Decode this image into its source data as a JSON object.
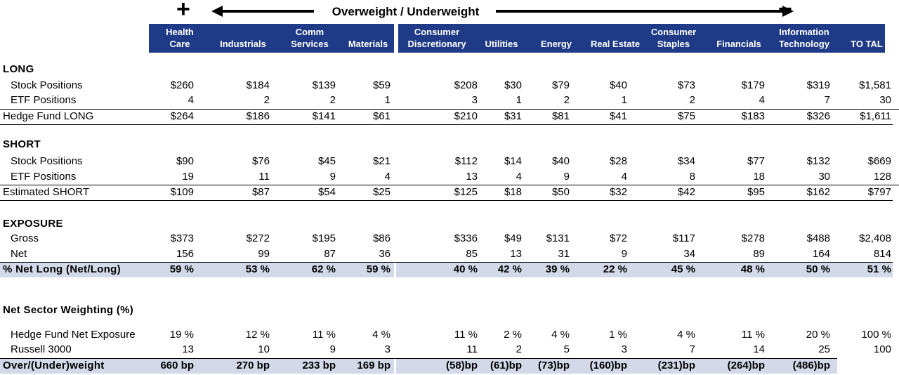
{
  "header": {
    "plus": "+",
    "minus": "−",
    "title": "Overweight / Underweight"
  },
  "columns": [
    {
      "line1": "Health",
      "line2": "Care"
    },
    {
      "line1": "",
      "line2": "Industrials"
    },
    {
      "line1": "Comm",
      "line2": "Services"
    },
    {
      "line1": "",
      "line2": "Materials"
    },
    {
      "line1": "Consumer",
      "line2": "Discretionary"
    },
    {
      "line1": "",
      "line2": "Utilities"
    },
    {
      "line1": "",
      "line2": "Energy"
    },
    {
      "line1": "",
      "line2": "Real Estate"
    },
    {
      "line1": "Consumer",
      "line2": "Staples"
    },
    {
      "line1": "",
      "line2": "Financials"
    },
    {
      "line1": "Information",
      "line2": "Technology"
    },
    {
      "line1": "",
      "line2": "TO TAL"
    }
  ],
  "sections": {
    "long": "LONG",
    "short": "SHORT",
    "exposure": "EXPOSURE",
    "weighting": "Net Sector Weighting (%)"
  },
  "rows": {
    "long_stock": {
      "label": "Stock Positions",
      "values": [
        "$260",
        "$184",
        "$139",
        "$59",
        "$208",
        "$30",
        "$79",
        "$40",
        "$73",
        "$179",
        "$319",
        "$1,581"
      ]
    },
    "long_etf": {
      "label": "ETF Positions",
      "values": [
        "4",
        "2",
        "2",
        "1",
        "3",
        "1",
        "2",
        "1",
        "2",
        "4",
        "7",
        "30"
      ]
    },
    "hf_long": {
      "label": "Hedge Fund LONG",
      "values": [
        "$264",
        "$186",
        "$141",
        "$61",
        "$210",
        "$31",
        "$81",
        "$41",
        "$75",
        "$183",
        "$326",
        "$1,611"
      ]
    },
    "short_stock": {
      "label": "Stock Positions",
      "values": [
        "$90",
        "$76",
        "$45",
        "$21",
        "$112",
        "$14",
        "$40",
        "$28",
        "$34",
        "$77",
        "$132",
        "$669"
      ]
    },
    "short_etf": {
      "label": "ETF Positions",
      "values": [
        "19",
        "11",
        "9",
        "4",
        "13",
        "4",
        "9",
        "4",
        "8",
        "18",
        "30",
        "128"
      ]
    },
    "est_short": {
      "label": "Estimated SHORT",
      "values": [
        "$109",
        "$87",
        "$54",
        "$25",
        "$125",
        "$18",
        "$50",
        "$32",
        "$42",
        "$95",
        "$162",
        "$797"
      ]
    },
    "gross": {
      "label": "Gross",
      "values": [
        "$373",
        "$272",
        "$195",
        "$86",
        "$336",
        "$49",
        "$131",
        "$72",
        "$117",
        "$278",
        "$488",
        "$2,408"
      ]
    },
    "net": {
      "label": "Net",
      "values": [
        "156",
        "99",
        "87",
        "36",
        "85",
        "13",
        "31",
        "9",
        "34",
        "89",
        "164",
        "814"
      ]
    },
    "pct_net_long": {
      "label": "% Net Long (Net/Long)",
      "values": [
        "59 %",
        "53 %",
        "62 %",
        "59 %",
        "40 %",
        "42 %",
        "39 %",
        "22 %",
        "45 %",
        "48 %",
        "50 %",
        "51 %"
      ]
    },
    "hf_net_exposure": {
      "label": "Hedge Fund Net Exposure",
      "values": [
        "19 %",
        "12 %",
        "11 %",
        "4 %",
        "11 %",
        "2 %",
        "4 %",
        "1 %",
        "4 %",
        "11 %",
        "20 %",
        "100 %"
      ]
    },
    "russell": {
      "label": "Russell 3000",
      "values": [
        "13",
        "10",
        "9",
        "3",
        "11",
        "2",
        "5",
        "3",
        "7",
        "14",
        "25",
        "100"
      ]
    },
    "over_under": {
      "label": "Over/(Under)weight",
      "values": [
        "660 bp",
        "270 bp",
        "233 bp",
        "169 bp",
        "(58)bp",
        "(61)bp",
        "(73)bp",
        "(160)bp",
        "(231)bp",
        "(264)bp",
        "(486)bp",
        ""
      ]
    }
  },
  "colors": {
    "header_bg": "#1f3b87",
    "band_bg": "#d3d9e8"
  }
}
